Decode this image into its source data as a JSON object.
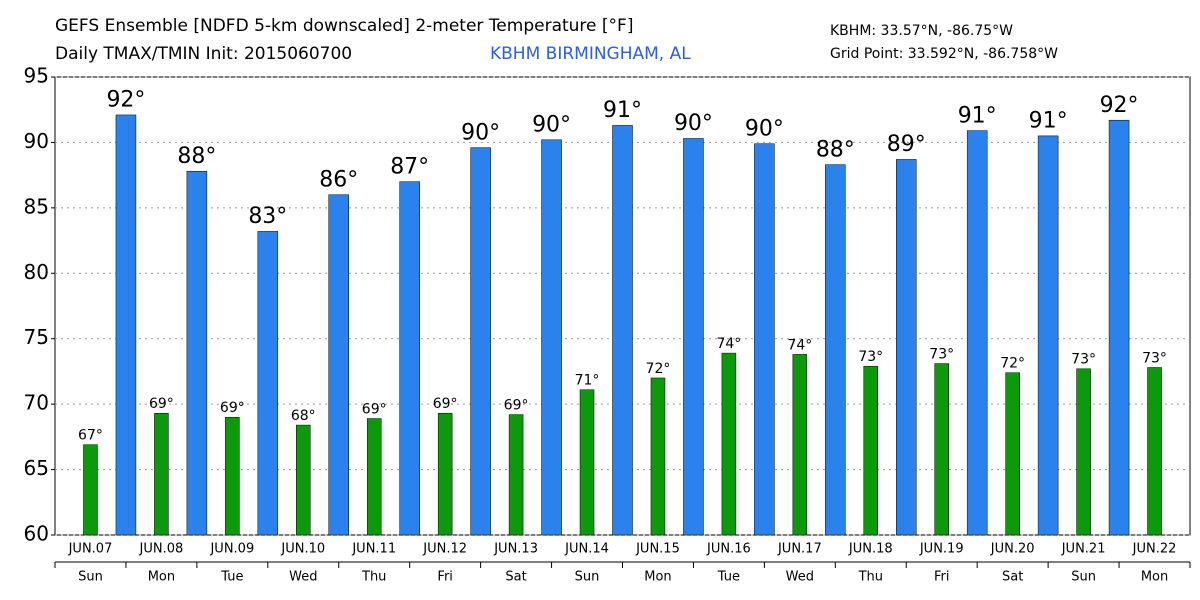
{
  "chart_data": {
    "type": "bar",
    "title": "GEFS Ensemble [NDFD 5-km downscaled] 2-meter Temperature [°F]",
    "subtitle": "Daily TMAX/TMIN Init: 2015060700",
    "location": "KBHM BIRMINGHAM, AL",
    "station": "KBHM: 33.57°N, -86.75°W",
    "grid_point": "Grid Point: 33.592°N, -86.758°W",
    "categories": [
      "JUN.07",
      "JUN.08",
      "JUN.09",
      "JUN.10",
      "JUN.11",
      "JUN.12",
      "JUN.13",
      "JUN.14",
      "JUN.15",
      "JUN.16",
      "JUN.17",
      "JUN.18",
      "JUN.19",
      "JUN.20",
      "JUN.21",
      "JUN.22"
    ],
    "days": [
      "Sun",
      "Mon",
      "Tue",
      "Wed",
      "Thu",
      "Fri",
      "Sat",
      "Sun",
      "Mon",
      "Tue",
      "Wed",
      "Thu",
      "Fri",
      "Sat",
      "Sun",
      "Mon"
    ],
    "series": [
      {
        "color": "#2b82ec",
        "values": [
          92.1,
          87.8,
          83.2,
          86.0,
          87.0,
          89.6,
          90.2,
          91.3,
          90.3,
          89.9,
          88.3,
          88.7,
          90.9,
          90.5,
          91.7,
          null
        ],
        "value_labels": [
          "92°",
          "88°",
          "83°",
          "86°",
          "87°",
          "90°",
          "90°",
          "91°",
          "90°",
          "90°",
          "88°",
          "89°",
          "91°",
          "91°",
          "92°",
          null
        ]
      },
      {
        "color": "#0c9a0c",
        "values": [
          66.9,
          69.3,
          69.0,
          68.4,
          68.9,
          69.3,
          69.2,
          71.1,
          72.0,
          73.9,
          73.8,
          72.9,
          73.1,
          72.4,
          72.7,
          72.8
        ],
        "value_labels": [
          "67°",
          "69°",
          "69°",
          "68°",
          "69°",
          "69°",
          "69°",
          "71°",
          "72°",
          "74°",
          "74°",
          "73°",
          "73°",
          "72°",
          "73°",
          "73°"
        ]
      }
    ],
    "ylim": [
      60,
      95
    ],
    "yticks": [
      60,
      65,
      70,
      75,
      80,
      85,
      90,
      95
    ],
    "grid": true
  }
}
